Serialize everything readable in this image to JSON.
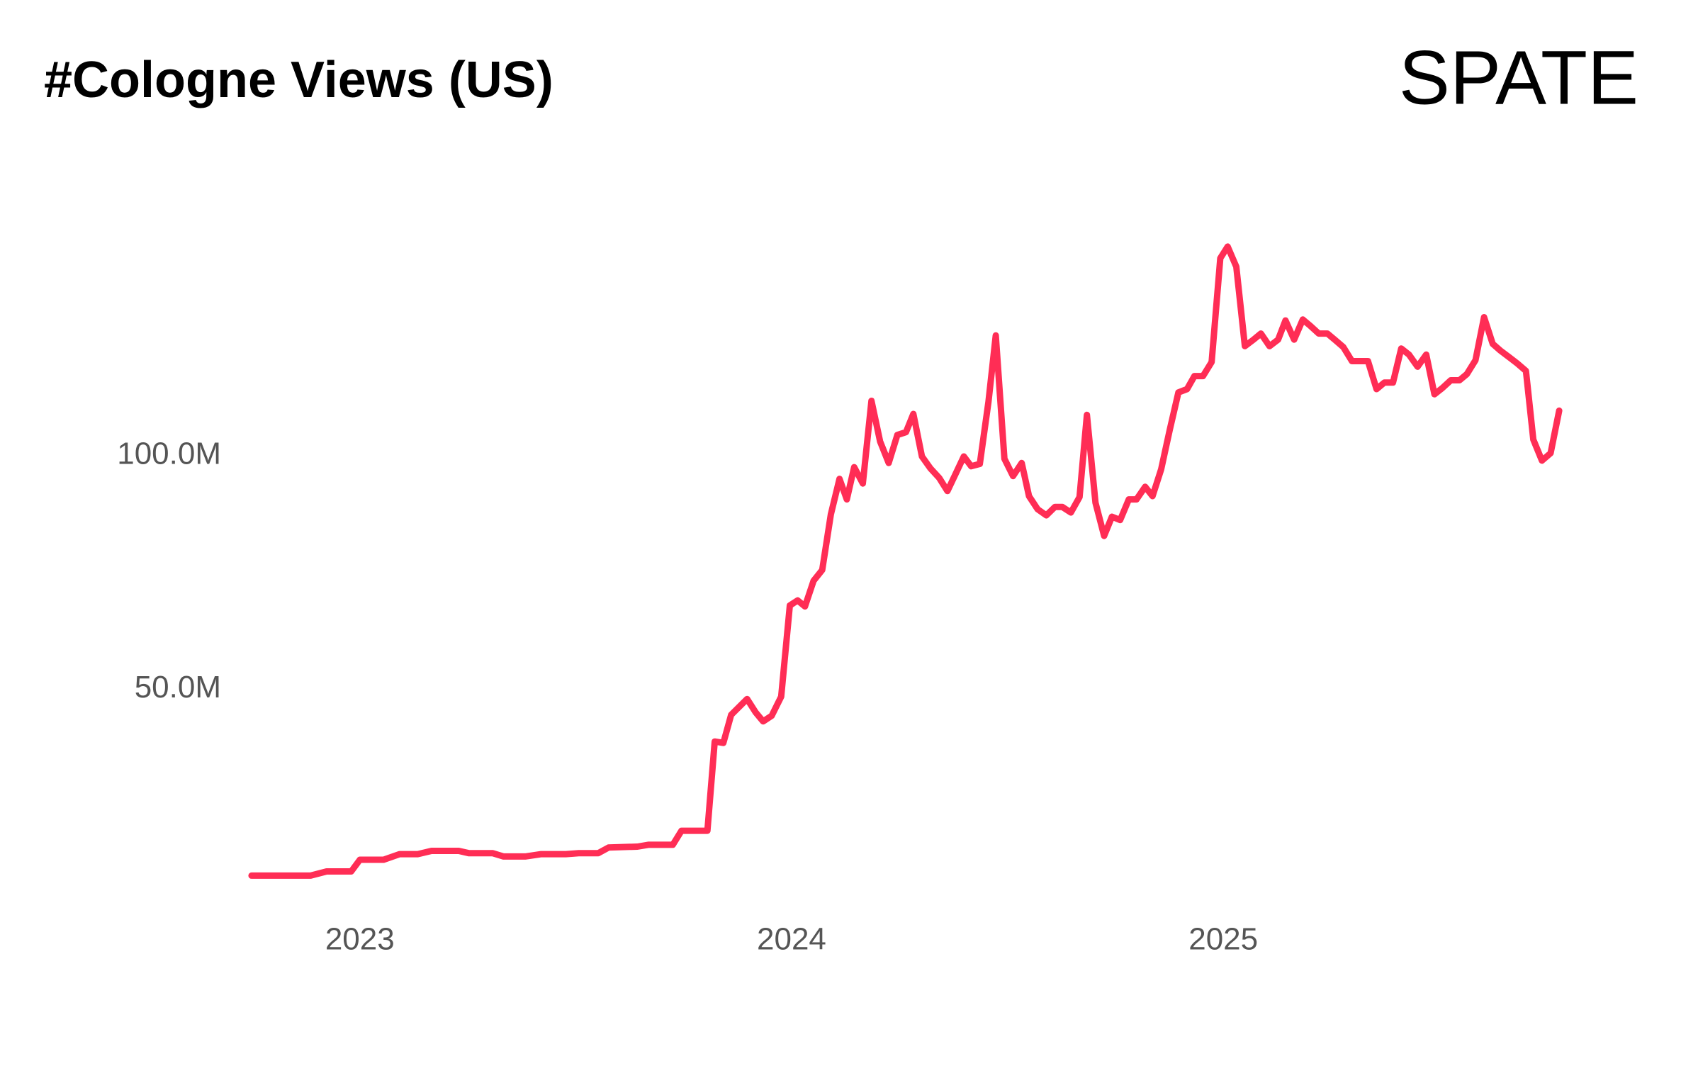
{
  "logo": "SPATE",
  "chart_data": {
    "type": "line",
    "title": "#Cologne Views (US)",
    "color": "#ff2d55",
    "x": [
      2022.749,
      2022.886,
      2022.923,
      2022.98,
      2023.0,
      2023.055,
      2023.092,
      2023.134,
      2023.166,
      2023.229,
      2023.253,
      2023.308,
      2023.333,
      2023.383,
      2023.42,
      2023.477,
      2023.507,
      2023.552,
      2023.576,
      2023.643,
      2023.668,
      2023.725,
      2023.745,
      2023.805,
      2023.822,
      2023.842,
      2023.86,
      2023.897,
      2023.917,
      2023.934,
      2023.954,
      2023.976,
      2023.996,
      2024.014,
      2024.031,
      2024.051,
      2024.071,
      2024.091,
      2024.111,
      2024.128,
      2024.145,
      2024.165,
      2024.185,
      2024.205,
      2024.225,
      2024.245,
      2024.265,
      2024.282,
      2024.302,
      2024.322,
      2024.342,
      2024.361,
      2024.379,
      2024.399,
      2024.416,
      2024.436,
      2024.456,
      2024.473,
      2024.493,
      2024.513,
      2024.533,
      2024.55,
      2024.57,
      2024.59,
      2024.61,
      2024.627,
      2024.647,
      2024.667,
      2024.684,
      2024.704,
      2024.724,
      2024.742,
      2024.761,
      2024.781,
      2024.799,
      2024.819,
      2024.836,
      2024.856,
      2024.876,
      2024.896,
      2024.916,
      2024.933,
      2024.953,
      2024.973,
      2024.993,
      2025.01,
      2025.03,
      2025.05,
      2025.07,
      2025.087,
      2025.107,
      2025.127,
      2025.144,
      2025.164,
      2025.184,
      2025.201,
      2025.221,
      2025.241,
      2025.258,
      2025.278,
      2025.298,
      2025.316,
      2025.335,
      2025.355,
      2025.373,
      2025.393,
      2025.412,
      2025.43,
      2025.45,
      2025.47,
      2025.489,
      2025.507,
      2025.527,
      2025.547,
      2025.564,
      2025.584,
      2025.604,
      2025.624,
      2025.641,
      2025.661,
      2025.681,
      2025.701,
      2025.718,
      2025.738,
      2025.758,
      2025.778
    ],
    "values": [
      10.1,
      10.1,
      11.0,
      11.0,
      13.5,
      13.5,
      14.7,
      14.7,
      15.4,
      15.4,
      14.9,
      14.9,
      14.2,
      14.2,
      14.7,
      14.7,
      14.9,
      14.9,
      16.1,
      16.3,
      16.7,
      16.7,
      19.7,
      19.7,
      38.8,
      38.5,
      44.5,
      47.9,
      45.0,
      43.1,
      44.3,
      48.4,
      67.9,
      69.0,
      67.7,
      73.2,
      75.5,
      87.4,
      95.0,
      90.6,
      97.5,
      94.0,
      111.7,
      103.0,
      98.4,
      104.4,
      105.0,
      108.9,
      99.8,
      97.2,
      95.2,
      92.4,
      95.9,
      99.8,
      97.7,
      98.2,
      111.5,
      125.7,
      99.3,
      95.6,
      98.4,
      91.3,
      88.5,
      87.2,
      89.0,
      89.0,
      87.8,
      91.1,
      108.7,
      89.9,
      82.8,
      86.9,
      86.2,
      90.6,
      90.6,
      93.3,
      91.3,
      97.0,
      105.5,
      113.5,
      114.2,
      117.0,
      117.0,
      120.0,
      142.2,
      144.7,
      140.4,
      123.4,
      124.8,
      126.1,
      123.4,
      124.8,
      128.9,
      124.8,
      129.1,
      127.8,
      126.1,
      126.1,
      124.8,
      123.2,
      120.2,
      120.2,
      120.2,
      114.2,
      115.6,
      115.6,
      122.9,
      121.6,
      119.0,
      121.6,
      113.1,
      114.4,
      116.1,
      116.1,
      117.4,
      120.4,
      129.6,
      123.9,
      122.5,
      121.1,
      119.7,
      118.1,
      103.4,
      98.9,
      100.5,
      109.6
    ],
    "xlim": [
      2022.7,
      2025.85
    ],
    "xticks": [
      2023,
      2024,
      2025
    ],
    "ylim": [
      0,
      150
    ],
    "yticks": [
      {
        "value": 50,
        "label": "50.0M"
      },
      {
        "value": 100,
        "label": "100.0M"
      }
    ],
    "grid": false
  }
}
